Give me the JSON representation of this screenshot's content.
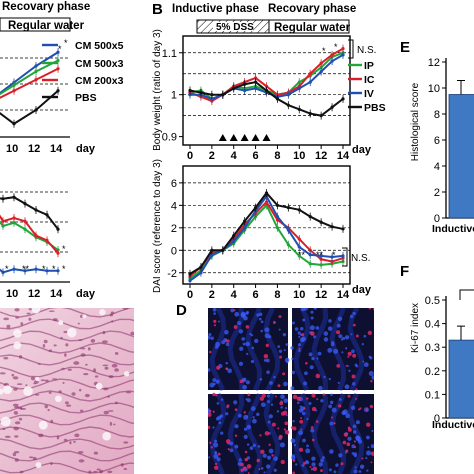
{
  "colors": {
    "PBS": "#111111",
    "CM500x5": "#1f4fb0",
    "CM500x3": "#22a63a",
    "CM200x3": "#d8202a",
    "IP": "#22a63a",
    "IC": "#d8202a",
    "IV": "#1f4fb0",
    "bar": "#3f79c3",
    "mic_blue": "#1d2f9a",
    "mic_red": "#e02868",
    "he_pink": "#e7b5cb",
    "he_dark": "#8a2f6a"
  },
  "panelA": {
    "header": "Recovary phase",
    "phase": "Regular water",
    "day_label": "day",
    "legend": [
      "CM 500x5",
      "CM 500x3",
      "CM 200x3",
      "PBS"
    ],
    "ticks_top": [
      "10",
      "12",
      "14"
    ],
    "ticks_bottom": [
      "10",
      "12",
      "14"
    ],
    "stars_top": [
      "*",
      "*"
    ],
    "stars_bottom": [
      "*",
      "**",
      "*",
      "*",
      "*",
      "*"
    ]
  },
  "panelB": {
    "label": "B",
    "header_left": "Inductive phase",
    "header_right": "Recovary phase",
    "phase_dss": "5% DSS",
    "phase_water": "Regular water",
    "day_label": "day",
    "ns_top": "N.S.",
    "ns_bottom": "N.S.",
    "stars_top": [
      "*",
      "*"
    ],
    "stars_bottom": [
      "**",
      "**",
      "*"
    ],
    "legend": [
      "IP",
      "IC",
      "IV",
      "PBS"
    ]
  },
  "chart_data": [
    {
      "type": "line",
      "ylabel": "Body weight (ratio of day 3)",
      "ylim": [
        0.88,
        1.14
      ],
      "yticks": [
        "1.1",
        "1",
        "0.9"
      ],
      "x": [
        0,
        1,
        2,
        3,
        4,
        5,
        6,
        7,
        8,
        9,
        10,
        11,
        12,
        13,
        14
      ],
      "xticks": [
        "0",
        "2",
        "4",
        "6",
        "8",
        "10",
        "12",
        "14"
      ],
      "dss_days": [
        3,
        4,
        5,
        6,
        7
      ],
      "series": [
        {
          "name": "IP",
          "values": [
            1.005,
            1.01,
            0.99,
            1.0,
            1.02,
            1.015,
            1.02,
            1.01,
            1.0,
            1.005,
            1.03,
            1.045,
            1.065,
            1.09,
            1.1
          ]
        },
        {
          "name": "IC",
          "values": [
            1.005,
            0.995,
            0.985,
            1.0,
            1.02,
            1.03,
            1.04,
            1.02,
            1.0,
            1.005,
            1.02,
            1.05,
            1.075,
            1.095,
            1.11
          ]
        },
        {
          "name": "IV",
          "values": [
            1.0,
            1.0,
            0.99,
            1.0,
            1.015,
            1.01,
            1.015,
            1.005,
            0.995,
            1.0,
            1.015,
            1.03,
            1.055,
            1.08,
            1.095
          ]
        },
        {
          "name": "PBS",
          "values": [
            1.01,
            1.005,
            1.0,
            1.0,
            1.015,
            1.025,
            1.03,
            1.01,
            0.99,
            0.975,
            0.965,
            0.955,
            0.95,
            0.97,
            0.99
          ]
        }
      ]
    },
    {
      "type": "line",
      "ylabel": "DAI score (reference to day 3)",
      "ylim": [
        -3,
        7.5
      ],
      "yticks": [
        "6",
        "4",
        "2",
        "0",
        "-2"
      ],
      "x": [
        0,
        1,
        2,
        3,
        4,
        5,
        6,
        7,
        8,
        9,
        10,
        11,
        12,
        13,
        14
      ],
      "xticks": [
        "0",
        "2",
        "4",
        "6",
        "8",
        "10",
        "12",
        "14"
      ],
      "series": [
        {
          "name": "IP",
          "values": [
            -2.5,
            -1.8,
            -0.5,
            0.0,
            0.6,
            1.8,
            3.0,
            4.0,
            2.0,
            0.5,
            -0.5,
            -1.2,
            -1.3,
            -1.2,
            -1.0
          ]
        },
        {
          "name": "IC",
          "values": [
            -2.3,
            -1.5,
            -0.2,
            0.0,
            1.0,
            2.3,
            3.3,
            4.3,
            2.7,
            2.0,
            1.0,
            0.0,
            -0.8,
            -1.0,
            -0.7
          ]
        },
        {
          "name": "IV",
          "values": [
            -2.7,
            -2.0,
            -0.4,
            0.0,
            0.8,
            2.0,
            3.5,
            4.8,
            3.0,
            1.8,
            0.3,
            -0.4,
            -0.5,
            -0.6,
            -0.5
          ]
        },
        {
          "name": "PBS",
          "values": [
            -2.1,
            -1.5,
            0.0,
            0.0,
            1.3,
            2.6,
            3.8,
            5.1,
            4.0,
            3.8,
            3.6,
            3.0,
            2.5,
            2.1,
            1.9
          ]
        }
      ]
    },
    {
      "type": "line",
      "x": [
        8,
        10,
        12,
        14
      ],
      "series": [
        {
          "name": "CM 500x5",
          "values": [
            0.2,
            0.5,
            0.8,
            1.05
          ]
        },
        {
          "name": "CM 500x3",
          "values": [
            0.2,
            0.45,
            0.7,
            0.9
          ]
        },
        {
          "name": "CM 200x3",
          "values": [
            0.15,
            0.35,
            0.55,
            0.75
          ]
        },
        {
          "name": "PBS",
          "values": [
            0.05,
            -0.25,
            0.0,
            0.35
          ]
        }
      ]
    },
    {
      "type": "line",
      "x": [
        8,
        9,
        10,
        11,
        12,
        13,
        14
      ],
      "series": [
        {
          "name": "PBS",
          "values": [
            3.8,
            3.7,
            3.8,
            3.4,
            3.0,
            2.7,
            1.8
          ]
        },
        {
          "name": "CM 500x3",
          "values": [
            2.9,
            2.0,
            2.2,
            1.8,
            1.3,
            1.0,
            0.5
          ]
        },
        {
          "name": "CM 200x3",
          "values": [
            3.4,
            2.3,
            2.5,
            2.3,
            1.4,
            1.1,
            0.3
          ]
        },
        {
          "name": "CM 500x5",
          "values": [
            -0.3,
            -0.9,
            -0.7,
            -0.8,
            -0.7,
            -0.8,
            -0.8
          ]
        }
      ]
    },
    {
      "type": "bar",
      "ylabel": "Histological score",
      "ylim": [
        0,
        12
      ],
      "yticks": [
        "12",
        "10",
        "8",
        "6",
        "4",
        "2",
        "0"
      ],
      "categories": [
        "Inductive"
      ],
      "values": [
        9.5
      ]
    },
    {
      "type": "bar",
      "ylabel": "Ki-67 index",
      "ylim": [
        0,
        0.5
      ],
      "yticks": [
        "0.5",
        "0.4",
        "0.3",
        "0.2",
        "0.1",
        "0"
      ],
      "categories": [
        "Inductive"
      ],
      "values": [
        0.33
      ]
    }
  ],
  "panelD": {
    "label": "D"
  },
  "panelE": {
    "label": "E",
    "xlabel": "Inductive"
  },
  "panelF": {
    "label": "F",
    "xlabel": "Inductive"
  }
}
